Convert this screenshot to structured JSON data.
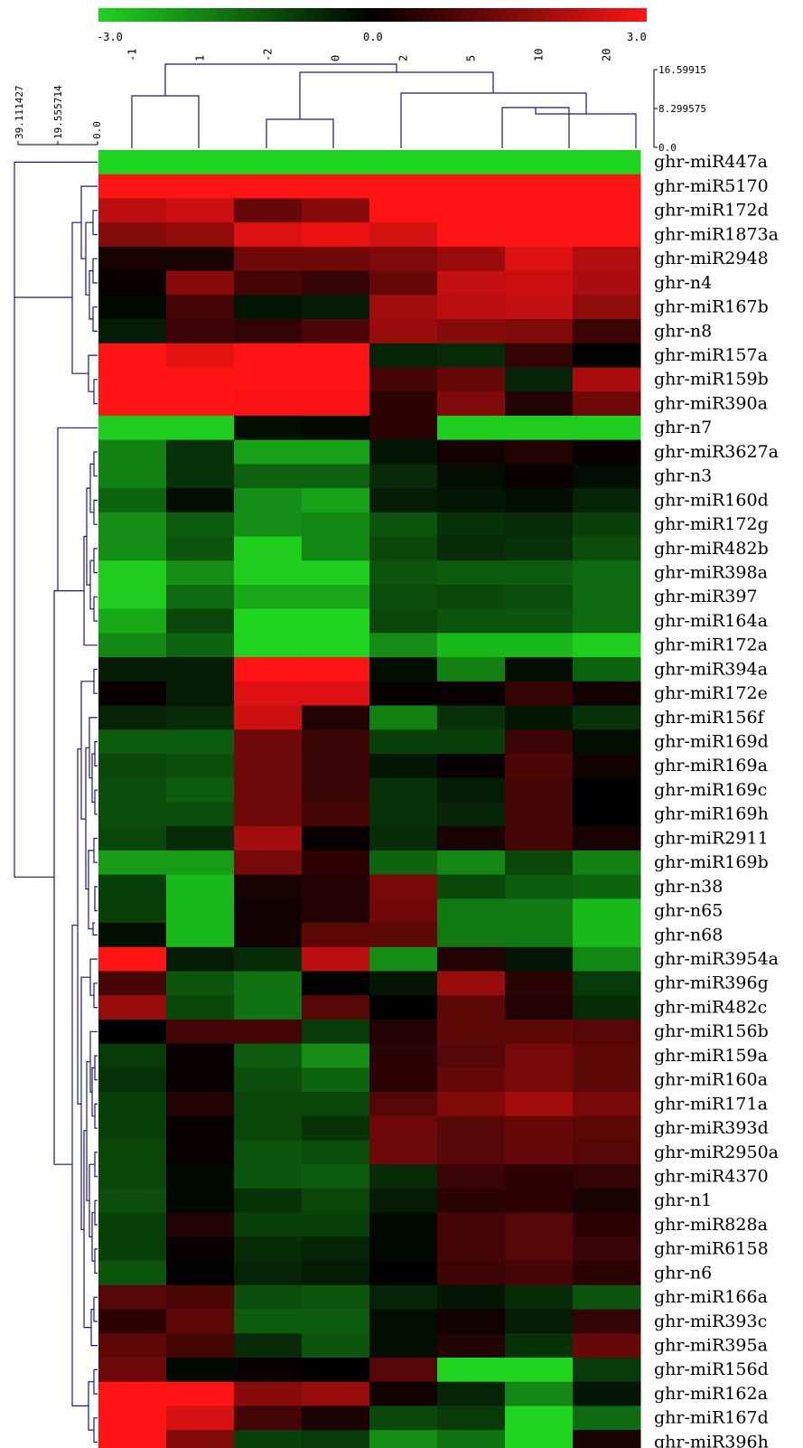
{
  "chart_data": {
    "type": "heatmap",
    "color_scale": {
      "min": -3.0,
      "mid": 0.0,
      "max": 3.0,
      "min_label": "-3.0",
      "mid_label": "0.0",
      "max_label": "3.0",
      "colors": {
        "low": "#1ed51e",
        "mid": "#000000",
        "high": "#ff1414"
      }
    },
    "columns": [
      "-1",
      "1",
      "-2",
      "0",
      "2",
      "5",
      "10",
      "20"
    ],
    "rows": [
      "ghr-miR447a",
      "ghr-miR5170",
      "ghr-miR172d",
      "ghr-miR1873a",
      "ghr-miR2948",
      "ghr-n4",
      "ghr-miR167b",
      "ghr-n8",
      "ghr-miR157a",
      "ghr-miR159b",
      "ghr-miR390a",
      "ghr-n7",
      "ghr-miR3627a",
      "ghr-n3",
      "ghr-miR160d",
      "ghr-miR172g",
      "ghr-miR482b",
      "ghr-miR398a",
      "ghr-miR397",
      "ghr-miR164a",
      "ghr-miR172a",
      "ghr-miR394a",
      "ghr-miR172e",
      "ghr-miR156f",
      "ghr-miR169d",
      "ghr-miR169a",
      "ghr-miR169c",
      "ghr-miR169h",
      "ghr-miR2911",
      "ghr-miR169b",
      "ghr-n38",
      "ghr-n65",
      "ghr-n68",
      "ghr-miR3954a",
      "ghr-miR396g",
      "ghr-miR482c",
      "ghr-miR156b",
      "ghr-miR159a",
      "ghr-miR160a",
      "ghr-miR171a",
      "ghr-miR393d",
      "ghr-miR2950a",
      "ghr-miR4370",
      "ghr-n1",
      "ghr-miR828a",
      "ghr-miR6158",
      "ghr-n6",
      "ghr-miR166a",
      "ghr-miR393c",
      "ghr-miR395a",
      "ghr-miR156d",
      "ghr-miR162a",
      "ghr-miR167d",
      "ghr-miR396h"
    ],
    "values": [
      [
        -3,
        -3,
        -3,
        -3,
        -3,
        -3,
        -3,
        -3
      ],
      [
        3,
        3,
        3,
        3,
        3,
        3,
        3,
        3
      ],
      [
        2.2,
        2.4,
        1.2,
        1.6,
        3,
        3,
        3,
        3
      ],
      [
        1.6,
        1.7,
        2.6,
        2.8,
        2.5,
        3,
        3,
        3
      ],
      [
        0.3,
        0.3,
        1.3,
        1.3,
        1.5,
        1.8,
        2.6,
        2.1
      ],
      [
        0.1,
        1.6,
        0.8,
        0.6,
        1.2,
        2.3,
        2.4,
        2.0
      ],
      [
        -0.1,
        0.8,
        -0.3,
        -0.4,
        1.9,
        2.2,
        2.3,
        1.7
      ],
      [
        -0.4,
        0.7,
        0.6,
        0.9,
        1.8,
        1.6,
        1.5,
        0.7
      ],
      [
        3,
        2.7,
        3,
        3,
        -0.5,
        -0.6,
        0.6,
        0
      ],
      [
        3,
        3,
        3,
        3,
        0.8,
        1.2,
        -0.5,
        2.0
      ],
      [
        3,
        3,
        2.9,
        2.9,
        0.5,
        1.5,
        0.4,
        1.3
      ],
      [
        -2.9,
        -2.9,
        -0.2,
        -0.1,
        0.5,
        -2.9,
        -2.9,
        -2.9
      ],
      [
        -1.8,
        -0.7,
        -2.3,
        -2.3,
        -0.3,
        0.2,
        0.4,
        0.1
      ],
      [
        -1.8,
        -0.7,
        -1.4,
        -1.4,
        -0.6,
        -0.2,
        0.1,
        -0.2
      ],
      [
        -1.4,
        -0.2,
        -2.0,
        -2.3,
        -0.4,
        -0.3,
        -0.2,
        -0.5
      ],
      [
        -2.0,
        -1.3,
        -2.0,
        -1.9,
        -1.2,
        -0.7,
        -0.6,
        -0.9
      ],
      [
        -2.0,
        -1.2,
        -2.9,
        -1.9,
        -1.0,
        -0.6,
        -0.7,
        -1.1
      ],
      [
        -2.9,
        -2.0,
        -2.9,
        -2.9,
        -1.2,
        -1.3,
        -1.3,
        -1.5
      ],
      [
        -2.9,
        -1.5,
        -2.4,
        -2.4,
        -1.1,
        -1.0,
        -1.1,
        -1.5
      ],
      [
        -2.4,
        -1.0,
        -3,
        -3,
        -1.0,
        -1.2,
        -1.2,
        -1.5
      ],
      [
        -1.9,
        -1.4,
        -3,
        -3,
        -2.0,
        -2.6,
        -2.6,
        -2.9
      ],
      [
        -0.4,
        -0.4,
        3,
        3,
        -0.2,
        -1.8,
        -0.2,
        -1.4
      ],
      [
        0.1,
        -0.4,
        2.6,
        2.6,
        0.1,
        0.1,
        0.6,
        0.2
      ],
      [
        -0.5,
        -0.6,
        2.4,
        0.4,
        -1.8,
        -0.7,
        -0.3,
        -0.7
      ],
      [
        -1.3,
        -1.3,
        1.3,
        0.7,
        -0.9,
        -0.9,
        0.7,
        -0.2
      ],
      [
        -1.0,
        -1.1,
        1.3,
        0.7,
        -0.3,
        0.1,
        0.9,
        0.2
      ],
      [
        -1.1,
        -1.3,
        1.3,
        0.7,
        -0.7,
        -0.4,
        0.8,
        0
      ],
      [
        -1.1,
        -1.1,
        1.3,
        0.8,
        -0.7,
        -0.5,
        0.8,
        0
      ],
      [
        -1.0,
        -0.6,
        1.9,
        0.1,
        -0.6,
        0.3,
        0.8,
        0.3
      ],
      [
        -2.2,
        -2.2,
        1.4,
        0.5,
        -1.4,
        -1.9,
        -1.0,
        -1.8
      ],
      [
        -0.9,
        -2.6,
        0.3,
        0.4,
        1.4,
        -1.0,
        -1.3,
        -1.4
      ],
      [
        -0.9,
        -2.6,
        0.2,
        0.4,
        1.3,
        -1.7,
        -1.7,
        -2.6
      ],
      [
        -0.2,
        -2.6,
        0.2,
        1.1,
        1.1,
        -1.7,
        -1.7,
        -2.6
      ],
      [
        3,
        -0.4,
        -0.6,
        2.2,
        -2.0,
        0.4,
        -0.3,
        -1.9
      ],
      [
        0.8,
        -1.2,
        -1.6,
        0,
        -0.3,
        1.8,
        0.5,
        -0.8
      ],
      [
        1.8,
        -1.0,
        -1.6,
        1.0,
        0,
        1.1,
        0.4,
        -0.6
      ],
      [
        0,
        0.8,
        0.8,
        -0.8,
        0.4,
        1.1,
        1.1,
        1.0
      ],
      [
        -0.8,
        0.1,
        -1.3,
        -2.0,
        0.5,
        1.0,
        1.4,
        1.1
      ],
      [
        -0.7,
        0.1,
        -1.1,
        -1.4,
        0.5,
        1.2,
        1.4,
        1.1
      ],
      [
        -0.9,
        0.4,
        -1.0,
        -1.0,
        1.0,
        1.5,
        1.9,
        1.4
      ],
      [
        -0.9,
        0.1,
        -1.0,
        -0.7,
        1.3,
        1.0,
        1.2,
        1.1
      ],
      [
        -1.0,
        0.1,
        -1.2,
        -1.1,
        1.3,
        1.0,
        1.2,
        1.0
      ],
      [
        -1.0,
        -0.1,
        -1.2,
        -1.3,
        -0.6,
        0.7,
        0.5,
        0.6
      ],
      [
        -1.1,
        -0.1,
        -0.7,
        -1.0,
        -0.4,
        0.5,
        0.5,
        0.3
      ],
      [
        -0.9,
        0.4,
        -0.9,
        -0.9,
        -0.1,
        0.8,
        1.0,
        0.5
      ],
      [
        -0.9,
        0.1,
        -0.6,
        -0.5,
        -0.1,
        0.8,
        1.0,
        0.7
      ],
      [
        -1.2,
        0,
        -0.5,
        -0.4,
        0,
        0.7,
        0.8,
        0.5
      ],
      [
        1.0,
        0.9,
        -1.1,
        -1.2,
        -0.5,
        -0.3,
        -0.6,
        -1.2
      ],
      [
        0.5,
        1.1,
        -1.3,
        -1.3,
        -0.2,
        0.2,
        -0.4,
        0.6
      ],
      [
        1.1,
        0.8,
        -0.6,
        -1.2,
        -0.2,
        0.4,
        -0.7,
        1.2
      ],
      [
        1.3,
        -0.1,
        0.1,
        0,
        1.0,
        -3,
        -3,
        -0.8
      ],
      [
        3,
        3,
        1.6,
        1.8,
        0.2,
        -0.5,
        -1.9,
        -0.3
      ],
      [
        3,
        2.5,
        0.8,
        0.3,
        -1.0,
        -0.8,
        -3,
        -1.5
      ],
      [
        3,
        1.5,
        -0.9,
        -0.8,
        -2.0,
        -1.6,
        -3,
        0.3
      ]
    ],
    "row_dendrogram_scale": [
      "39.111427",
      "19.555714",
      "0.0"
    ],
    "col_dendrogram_scale": [
      "16.59915",
      "8.299575",
      "0.0"
    ],
    "xlabel": "",
    "ylabel": ""
  }
}
